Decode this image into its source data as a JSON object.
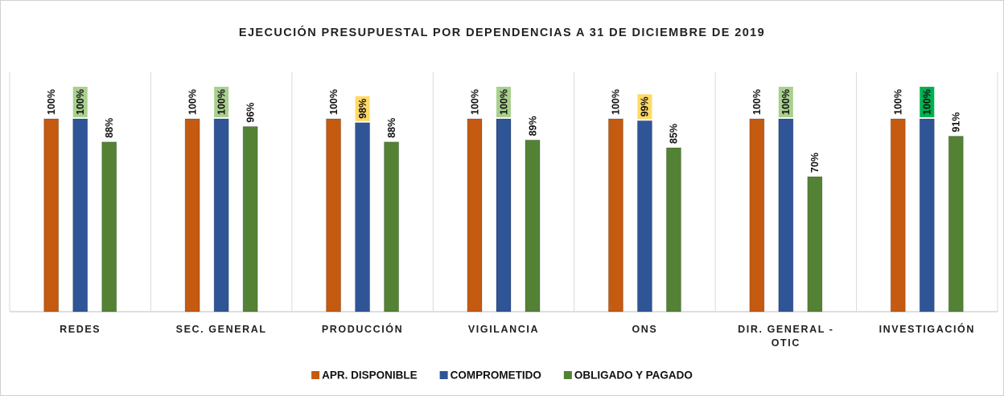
{
  "chart_data": {
    "type": "bar",
    "title": "EJECUCIÓN PRESUPUESTAL POR DEPENDENCIAS A 31 DE DICIEMBRE DE 2019",
    "categories": [
      "REDES",
      "SEC. GENERAL",
      "PRODUCCIÓN",
      "VIGILANCIA",
      "ONS",
      "DIR. GENERAL - OTIC",
      "INVESTIGACIÓN"
    ],
    "series": [
      {
        "name": "APR. DISPONIBLE",
        "color": "#c55a11",
        "values": [
          100,
          100,
          100,
          100,
          100,
          100,
          100
        ],
        "value_labels": [
          "100%",
          "100%",
          "100%",
          "100%",
          "100%",
          "100%",
          "100%"
        ]
      },
      {
        "name": "COMPROMETIDO",
        "color": "#2f5597",
        "values": [
          100,
          100,
          98,
          100,
          99,
          100,
          100
        ],
        "value_labels": [
          "100%",
          "100%",
          "98%",
          "100%",
          "99%",
          "100%",
          "100%"
        ],
        "value_label_backgrounds": [
          "#a9d08e",
          "#a9d08e",
          "#ffd966",
          "#a9d08e",
          "#ffd966",
          "#a9d08e",
          "#00b050"
        ]
      },
      {
        "name": "OBLIGADO Y PAGADO",
        "color": "#548235",
        "values": [
          88,
          96,
          88,
          89,
          85,
          70,
          91
        ],
        "value_labels": [
          "88%",
          "96%",
          "88%",
          "89%",
          "85%",
          "70%",
          "91%"
        ]
      }
    ],
    "ylim": [
      0,
      100
    ],
    "legend": "bottom"
  }
}
